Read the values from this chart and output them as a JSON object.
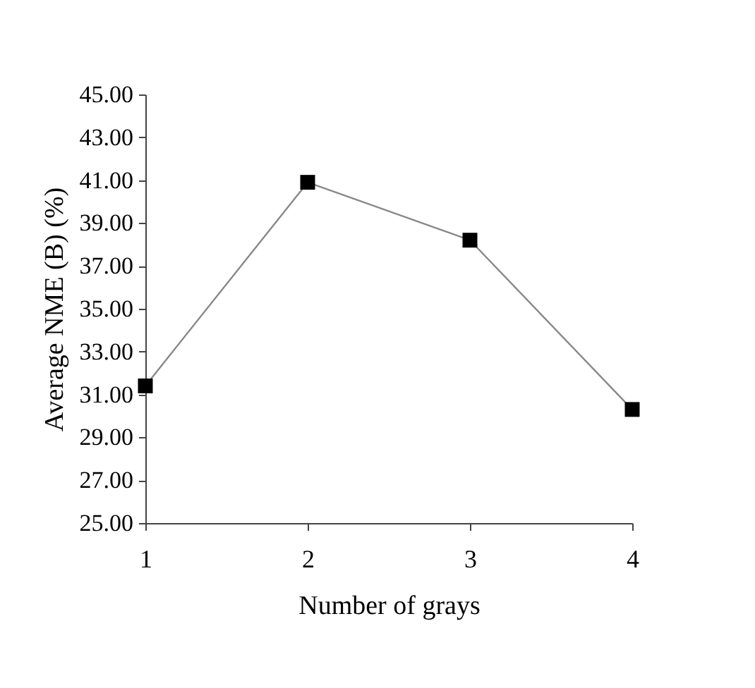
{
  "chart_data": {
    "type": "line",
    "xlabel": "Number of grays",
    "ylabel": "Average NME (B) (%)",
    "x": [
      1,
      2,
      3,
      4
    ],
    "series": [
      {
        "color": "#000000",
        "values": [
          31.4,
          40.9,
          38.2,
          30.3
        ]
      }
    ],
    "xlim": [
      1,
      4
    ],
    "xticks": [
      1,
      2,
      3,
      4
    ],
    "ylim": [
      25,
      45
    ],
    "yticks": [
      {
        "value": 25,
        "label": "25.00"
      },
      {
        "value": 27,
        "label": "27.00"
      },
      {
        "value": 29,
        "label": "29.00"
      },
      {
        "value": 31,
        "label": "31.00"
      },
      {
        "value": 33,
        "label": "33.00"
      },
      {
        "value": 35,
        "label": "35.00"
      },
      {
        "value": 37,
        "label": "37.00"
      },
      {
        "value": 39,
        "label": "39.00"
      },
      {
        "value": 41,
        "label": "41.00"
      },
      {
        "value": 43,
        "label": "43.00"
      },
      {
        "value": 45,
        "label": "45.00"
      }
    ],
    "marker": "square",
    "line_style": "solid",
    "grid": false,
    "legend": false
  }
}
